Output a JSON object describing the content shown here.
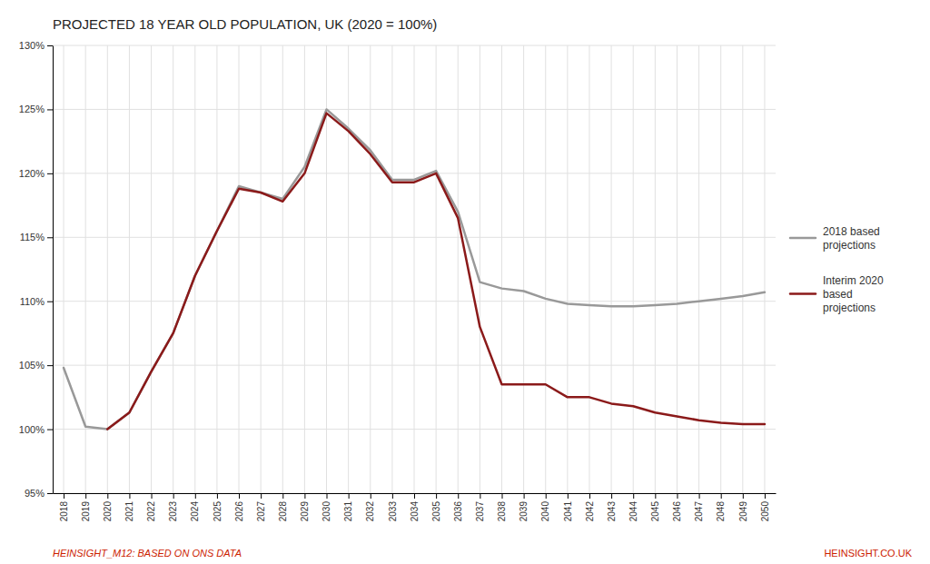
{
  "chart_data": {
    "type": "line",
    "title": "PROJECTED 18 YEAR OLD POPULATION, UK (2020 = 100%)",
    "x": [
      2018,
      2019,
      2020,
      2021,
      2022,
      2023,
      2024,
      2025,
      2026,
      2027,
      2028,
      2029,
      2030,
      2031,
      2032,
      2033,
      2034,
      2035,
      2036,
      2037,
      2038,
      2039,
      2040,
      2041,
      2042,
      2043,
      2044,
      2045,
      2046,
      2047,
      2048,
      2049,
      2050
    ],
    "series": [
      {
        "name": "2018 based\nprojections",
        "color": "#999999",
        "values": [
          104.8,
          100.2,
          100.0,
          101.3,
          104.5,
          107.5,
          112.0,
          115.5,
          119.0,
          118.5,
          118.0,
          120.5,
          125.0,
          123.5,
          121.8,
          119.5,
          119.5,
          120.2,
          117.0,
          111.5,
          111.0,
          110.8,
          110.2,
          109.8,
          109.7,
          109.6,
          109.6,
          109.7,
          109.8,
          110.0,
          110.2,
          110.4,
          110.7
        ]
      },
      {
        "name": "Interim 2020\nbased\nprojections",
        "color": "#8b1a1a",
        "values": [
          null,
          null,
          100.0,
          101.3,
          104.5,
          107.5,
          112.0,
          115.5,
          118.8,
          118.5,
          117.8,
          120.0,
          124.7,
          123.3,
          121.5,
          119.3,
          119.3,
          120.0,
          116.5,
          108.0,
          103.5,
          103.5,
          103.5,
          102.5,
          102.5,
          102.0,
          101.8,
          101.3,
          101.0,
          100.7,
          100.5,
          100.4,
          100.4
        ]
      }
    ],
    "xlim": [
      2017.5,
      2050.5
    ],
    "xticks": [
      2018,
      2019,
      2020,
      2021,
      2022,
      2023,
      2024,
      2025,
      2026,
      2027,
      2028,
      2029,
      2030,
      2031,
      2032,
      2033,
      2034,
      2035,
      2036,
      2037,
      2038,
      2039,
      2040,
      2041,
      2042,
      2043,
      2044,
      2045,
      2046,
      2047,
      2048,
      2049,
      2050
    ],
    "ylim": [
      95,
      130
    ],
    "yticks": [
      {
        "value": 95,
        "label": "95%"
      },
      {
        "value": 100,
        "label": "100%"
      },
      {
        "value": 105,
        "label": "105%"
      },
      {
        "value": 110,
        "label": "110%"
      },
      {
        "value": 115,
        "label": "115%"
      },
      {
        "value": 120,
        "label": "120%"
      },
      {
        "value": 125,
        "label": "125%"
      },
      {
        "value": 130,
        "label": "130%"
      }
    ],
    "grid": true,
    "legend": "right",
    "annotations": [
      {
        "text": "HEINSIGHT_M12: BASED ON ONS DATA",
        "color": "#cc2200"
      },
      {
        "text": "HEINSIGHT.CO.UK",
        "color": "#cc2200"
      }
    ]
  }
}
